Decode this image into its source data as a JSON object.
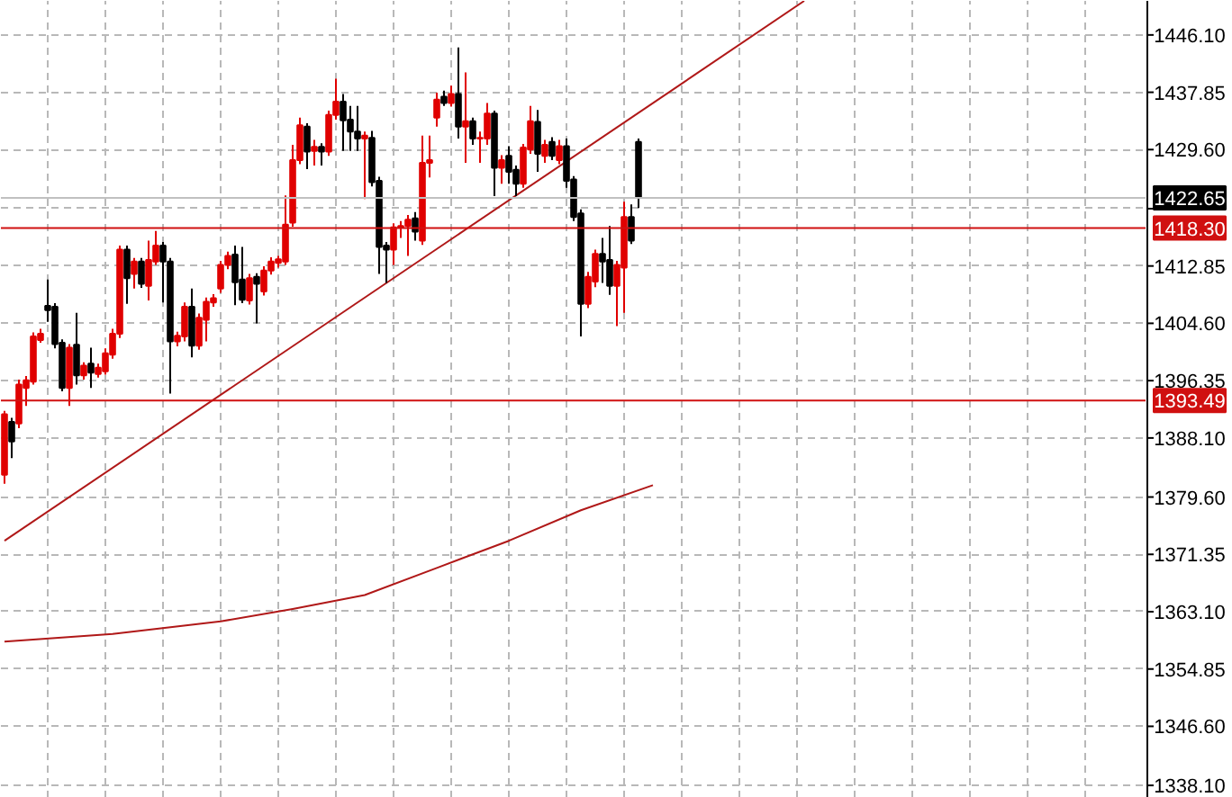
{
  "chart_data": {
    "type": "candlestick",
    "categories": [
      null,
      null,
      null,
      null,
      null,
      null,
      null,
      null,
      null,
      null,
      null,
      null,
      null,
      null,
      null,
      null,
      null,
      null,
      null,
      null,
      null,
      null,
      null,
      null,
      null,
      null,
      null,
      null,
      null,
      null,
      null,
      null,
      null,
      null,
      null,
      null,
      null,
      null,
      null,
      null,
      null,
      null,
      null,
      null,
      null,
      null,
      null,
      null,
      null,
      null,
      null,
      null,
      null,
      null,
      null,
      null,
      null,
      null,
      null,
      null,
      null,
      null,
      null,
      null,
      null,
      null,
      null,
      null,
      null,
      null,
      null,
      null,
      null,
      null,
      null,
      null,
      null,
      null,
      null,
      null,
      null,
      null,
      null,
      null,
      null,
      null,
      null,
      null,
      null,
      null,
      null,
      null,
      null,
      null,
      null,
      null,
      null,
      null,
      null,
      null,
      null,
      null,
      null,
      null,
      null,
      null,
      null,
      null,
      null,
      null,
      null,
      null,
      null,
      null,
      null,
      null,
      null,
      null,
      null,
      null,
      null,
      null,
      null,
      null,
      null,
      null,
      null,
      null,
      null,
      null,
      null,
      null,
      null,
      null,
      null,
      null,
      null,
      null,
      null,
      null,
      null,
      null,
      null,
      null,
      null,
      null,
      null,
      null,
      null,
      null,
      null,
      null,
      null,
      null,
      null,
      null,
      null,
      null,
      null
    ],
    "ohlc": [
      [
        1382.8,
        1392.0,
        1381.5,
        1391.5
      ],
      [
        1390.4,
        1391.0,
        1385.2,
        1387.6
      ],
      [
        1390.2,
        1396.5,
        1389.5,
        1395.8
      ],
      [
        1395.3,
        1397.0,
        1392.7,
        1396.4
      ],
      [
        1396.2,
        1403.3,
        1395.8,
        1402.7
      ],
      [
        1402.2,
        1403.8,
        1401.8,
        1403.1
      ],
      [
        1407.1,
        1410.9,
        1404.8,
        1406.5
      ],
      [
        1407.0,
        1407.5,
        1401.0,
        1401.6
      ],
      [
        1401.8,
        1402.3,
        1394.8,
        1395.3
      ],
      [
        1395.3,
        1401.6,
        1392.7,
        1401.1
      ],
      [
        1401.5,
        1406.1,
        1395.8,
        1397.1
      ],
      [
        1397.1,
        1399.0,
        1396.5,
        1398.5
      ],
      [
        1398.8,
        1401.1,
        1395.3,
        1397.5
      ],
      [
        1397.3,
        1398.8,
        1396.8,
        1398.2
      ],
      [
        1397.7,
        1401.0,
        1397.2,
        1400.3
      ],
      [
        1400.1,
        1403.8,
        1399.5,
        1403.1
      ],
      [
        1403.1,
        1415.8,
        1402.5,
        1415.2
      ],
      [
        1415.2,
        1415.8,
        1407.4,
        1411.1
      ],
      [
        1411.7,
        1414.0,
        1409.6,
        1413.5
      ],
      [
        1413.5,
        1414.0,
        1409.7,
        1410.3
      ],
      [
        1410.0,
        1416.5,
        1407.9,
        1413.7
      ],
      [
        1413.5,
        1417.9,
        1413.0,
        1415.8
      ],
      [
        1415.8,
        1416.3,
        1407.6,
        1413.5
      ],
      [
        1413.5,
        1414.0,
        1394.5,
        1402.0
      ],
      [
        1402.0,
        1403.4,
        1401.3,
        1402.8
      ],
      [
        1402.7,
        1407.6,
        1402.0,
        1407.0
      ],
      [
        1407.0,
        1409.6,
        1399.7,
        1401.4
      ],
      [
        1401.4,
        1406.0,
        1400.8,
        1405.4
      ],
      [
        1405.1,
        1408.3,
        1402.0,
        1407.7
      ],
      [
        1407.6,
        1408.8,
        1407.0,
        1408.2
      ],
      [
        1409.6,
        1413.6,
        1409.0,
        1413.0
      ],
      [
        1413.0,
        1414.9,
        1412.4,
        1414.3
      ],
      [
        1414.5,
        1415.8,
        1407.2,
        1410.5
      ],
      [
        1410.9,
        1415.6,
        1407.5,
        1408.0
      ],
      [
        1407.9,
        1411.7,
        1407.3,
        1411.1
      ],
      [
        1411.3,
        1411.8,
        1404.6,
        1410.3
      ],
      [
        1409.2,
        1412.8,
        1408.6,
        1412.2
      ],
      [
        1412.2,
        1414.1,
        1411.6,
        1413.5
      ],
      [
        1413.3,
        1414.3,
        1412.6,
        1413.8
      ],
      [
        1413.5,
        1423.0,
        1413.0,
        1418.8
      ],
      [
        1419.1,
        1430.3,
        1418.5,
        1428.1
      ],
      [
        1428.1,
        1434.2,
        1427.5,
        1433.1
      ],
      [
        1432.9,
        1433.4,
        1426.8,
        1429.3
      ],
      [
        1429.4,
        1431.0,
        1427.3,
        1430.0
      ],
      [
        1430.0,
        1430.5,
        1427.3,
        1429.3
      ],
      [
        1429.3,
        1435.2,
        1428.7,
        1434.6
      ],
      [
        1434.6,
        1439.8,
        1433.9,
        1436.5
      ],
      [
        1436.5,
        1437.6,
        1429.4,
        1433.8
      ],
      [
        1433.9,
        1435.9,
        1429.4,
        1432.2
      ],
      [
        1432.2,
        1435.9,
        1429.4,
        1431.2
      ],
      [
        1431.2,
        1432.2,
        1422.5,
        1431.6
      ],
      [
        1431.3,
        1432.3,
        1424.3,
        1424.9
      ],
      [
        1425.1,
        1425.7,
        1411.7,
        1415.6
      ],
      [
        1415.8,
        1416.3,
        1410.4,
        1415.2
      ],
      [
        1415.2,
        1419.0,
        1413.0,
        1418.4
      ],
      [
        1418.4,
        1419.3,
        1416.9,
        1418.6
      ],
      [
        1418.6,
        1420.2,
        1414.3,
        1419.5
      ],
      [
        1419.7,
        1420.6,
        1416.5,
        1417.8
      ],
      [
        1416.5,
        1431.6,
        1415.9,
        1427.7
      ],
      [
        1427.7,
        1431.6,
        1425.6,
        1428.1
      ],
      [
        1434.2,
        1437.8,
        1432.9,
        1436.8
      ],
      [
        1437.2,
        1438.1,
        1435.9,
        1436.3
      ],
      [
        1436.3,
        1438.8,
        1435.8,
        1437.6
      ],
      [
        1437.6,
        1444.3,
        1431.2,
        1432.9
      ],
      [
        1432.9,
        1440.7,
        1427.7,
        1433.7
      ],
      [
        1433.7,
        1434.2,
        1430.3,
        1431.2
      ],
      [
        1431.2,
        1432.2,
        1427.7,
        1431.3
      ],
      [
        1431.2,
        1436.3,
        1430.3,
        1434.8
      ],
      [
        1434.8,
        1435.2,
        1422.9,
        1427.0
      ],
      [
        1427.0,
        1428.8,
        1424.7,
        1428.1
      ],
      [
        1428.7,
        1430.1,
        1424.7,
        1426.4
      ],
      [
        1426.7,
        1427.3,
        1422.9,
        1424.7
      ],
      [
        1424.7,
        1430.4,
        1424.1,
        1429.9
      ],
      [
        1429.6,
        1435.9,
        1429.0,
        1433.7
      ],
      [
        1433.6,
        1435.3,
        1426.4,
        1429.0
      ],
      [
        1428.7,
        1431.0,
        1427.7,
        1430.3
      ],
      [
        1430.7,
        1431.4,
        1428.1,
        1428.7
      ],
      [
        1428.1,
        1431.0,
        1427.5,
        1430.1
      ],
      [
        1430.1,
        1431.2,
        1424.1,
        1425.1
      ],
      [
        1425.3,
        1425.8,
        1419.3,
        1419.9
      ],
      [
        1420.4,
        1421.0,
        1402.7,
        1407.4
      ],
      [
        1407.4,
        1412.0,
        1406.8,
        1411.3
      ],
      [
        1410.6,
        1415.2,
        1409.8,
        1414.6
      ],
      [
        1414.6,
        1416.9,
        1410.4,
        1413.5
      ],
      [
        1413.7,
        1418.6,
        1408.7,
        1410.0
      ],
      [
        1410.0,
        1413.6,
        1404.2,
        1413.0
      ],
      [
        1412.6,
        1422.1,
        1406.1,
        1419.9
      ],
      [
        1419.9,
        1421.7,
        1416.0,
        1416.5
      ],
      [
        1430.7,
        1431.2,
        1421.2,
        1422.65
      ],
      null,
      null,
      null,
      null,
      null,
      null,
      null,
      null,
      null,
      null,
      null,
      null,
      null,
      null,
      null,
      null,
      null,
      null,
      null,
      null,
      null,
      null,
      null,
      null,
      null,
      null,
      null,
      null,
      null,
      null,
      null,
      null,
      null,
      null,
      null,
      null,
      null,
      null,
      null,
      null,
      null,
      null,
      null,
      null,
      null,
      null,
      null,
      null,
      null,
      null,
      null,
      null,
      null,
      null,
      null,
      null,
      null,
      null,
      null,
      null,
      null,
      null,
      null,
      null,
      null,
      null,
      null,
      null,
      null,
      null
    ],
    "colors": [
      "#e00000",
      "#000000",
      "#e00000",
      "#e00000",
      "#e00000",
      "#e00000",
      "#000000",
      "#000000",
      "#000000",
      "#e00000",
      "#000000",
      "#e00000",
      "#000000",
      "#e00000",
      "#e00000",
      "#e00000",
      "#e00000",
      "#000000",
      "#e00000",
      "#000000",
      "#e00000",
      "#e00000",
      "#000000",
      "#000000",
      "#e00000",
      "#e00000",
      "#000000",
      "#e00000",
      "#e00000",
      "#e00000",
      "#e00000",
      "#e00000",
      "#000000",
      "#000000",
      "#e00000",
      "#000000",
      "#e00000",
      "#e00000",
      "#e00000",
      "#e00000",
      "#e00000",
      "#e00000",
      "#000000",
      "#e00000",
      "#000000",
      "#e00000",
      "#e00000",
      "#000000",
      "#000000",
      "#000000",
      "#e00000",
      "#000000",
      "#000000",
      "#000000",
      "#e00000",
      "#e00000",
      "#e00000",
      "#000000",
      "#e00000",
      "#e00000",
      "#e00000",
      "#000000",
      "#e00000",
      "#000000",
      "#e00000",
      "#000000",
      "#e00000",
      "#e00000",
      "#000000",
      "#e00000",
      "#000000",
      "#000000",
      "#e00000",
      "#e00000",
      "#000000",
      "#e00000",
      "#000000",
      "#e00000",
      "#000000",
      "#000000",
      "#000000",
      "#e00000",
      "#e00000",
      "#000000",
      "#000000",
      "#e00000",
      "#e00000",
      "#000000",
      "#000000",
      null,
      null,
      null,
      null,
      null,
      null,
      null,
      null,
      null,
      null,
      null,
      null,
      null,
      null,
      null,
      null,
      null,
      null,
      null,
      null,
      null,
      null,
      null,
      null,
      null,
      null,
      null,
      null,
      null,
      null,
      null,
      null,
      null,
      null,
      null,
      null,
      null,
      null,
      null,
      null,
      null,
      null,
      null,
      null,
      null,
      null,
      null,
      null,
      null,
      null,
      null,
      null,
      null,
      null,
      null,
      null,
      null,
      null,
      null,
      null,
      null,
      null,
      null,
      null,
      null,
      null,
      null,
      null,
      null,
      null
    ],
    "series": [
      {
        "type": "line",
        "color": "#b01818",
        "values": [
          1373.3,
          null,
          null,
          null,
          null,
          null,
          null,
          null,
          null,
          null,
          null,
          null,
          null,
          null,
          null,
          null,
          null,
          null,
          null,
          null,
          null,
          null,
          null,
          null,
          null,
          null,
          null,
          null,
          null,
          null,
          null,
          null,
          null,
          null,
          null,
          null,
          null,
          null,
          null,
          null,
          null,
          null,
          null,
          null,
          null,
          null,
          null,
          null,
          null,
          null,
          null,
          null,
          null,
          null,
          null,
          null,
          null,
          null,
          null,
          null,
          null,
          null,
          null,
          null,
          null,
          null,
          null,
          null,
          null,
          null,
          null,
          null,
          null,
          null,
          null,
          null,
          null,
          null,
          null,
          null,
          null,
          null,
          null,
          null,
          null,
          null,
          null,
          null,
          null,
          null,
          null,
          null,
          null,
          null,
          null,
          null,
          null,
          null,
          null,
          null,
          null,
          null,
          null,
          null,
          null,
          null,
          null,
          null,
          null,
          null,
          null,
          1451.0,
          null,
          null,
          null,
          null,
          null,
          null,
          null,
          null,
          null,
          null,
          null,
          null,
          null,
          null,
          null,
          null,
          null,
          null,
          null,
          null,
          null,
          null,
          null,
          null,
          null,
          null,
          null,
          null,
          null,
          null,
          null,
          null,
          null,
          null,
          null,
          null,
          null,
          null,
          null,
          null,
          null,
          null,
          null,
          null,
          null,
          null,
          null
        ]
      },
      {
        "type": "line",
        "color": "#b01818",
        "values": [
          1358.8,
          null,
          null,
          null,
          null,
          null,
          null,
          null,
          null,
          null,
          null,
          null,
          null,
          null,
          null,
          1359.9,
          null,
          null,
          null,
          null,
          null,
          null,
          null,
          null,
          null,
          null,
          null,
          null,
          null,
          null,
          1361.7,
          null,
          null,
          null,
          null,
          null,
          null,
          null,
          null,
          null,
          1363.5,
          null,
          null,
          null,
          null,
          null,
          null,
          null,
          null,
          null,
          1365.5,
          null,
          null,
          null,
          null,
          null,
          null,
          null,
          null,
          null,
          1369.4,
          null,
          null,
          null,
          null,
          null,
          null,
          null,
          null,
          null,
          1373.3,
          null,
          null,
          null,
          null,
          null,
          null,
          null,
          null,
          null,
          1377.7,
          null,
          null,
          null,
          null,
          null,
          null,
          null,
          null,
          null,
          1381.3,
          null,
          null,
          null,
          null,
          null,
          null,
          null,
          null,
          null,
          null,
          null,
          null,
          null,
          null,
          null,
          null,
          null,
          null,
          null,
          null,
          null,
          null,
          null,
          null,
          null,
          null,
          null,
          null,
          null,
          null,
          null,
          null,
          null,
          null,
          null,
          null,
          null,
          null,
          null,
          null,
          null,
          null,
          null,
          null,
          null,
          null,
          null,
          null,
          null,
          null,
          null,
          null,
          null,
          null,
          null,
          null,
          null,
          null,
          null,
          null,
          null,
          null,
          null,
          null,
          null,
          null,
          null,
          null
        ]
      }
    ],
    "ref_lines": [
      {
        "axis": "y",
        "value": 1422.65,
        "label": "1422.65",
        "color": "#c0c0c0"
      },
      {
        "axis": "y",
        "value": 1418.3,
        "label": "1418.30",
        "color": "#d01010"
      },
      {
        "axis": "y",
        "value": 1393.49,
        "label": "1393.49",
        "color": "#d01010"
      }
    ],
    "ylim": [
      1336.3,
      1451.0
    ],
    "yticks": [
      {
        "value": 1338.1,
        "label": "1338.10"
      },
      {
        "value": 1346.6,
        "label": "1346.60"
      },
      {
        "value": 1354.85,
        "label": "1354.85"
      },
      {
        "value": 1363.1,
        "label": "1363.10"
      },
      {
        "value": 1371.35,
        "label": "1371.35"
      },
      {
        "value": 1379.6,
        "label": "1379.60"
      },
      {
        "value": 1388.1,
        "label": "1388.10"
      },
      {
        "value": 1396.35,
        "label": "1396.35"
      },
      {
        "value": 1404.6,
        "label": "1404.60"
      },
      {
        "value": 1412.85,
        "label": "1412.85"
      },
      {
        "value": 1421.1,
        "label": null
      },
      {
        "value": 1429.6,
        "label": "1429.60"
      },
      {
        "value": 1437.85,
        "label": "1437.85"
      },
      {
        "value": 1446.1,
        "label": "1446.10"
      }
    ],
    "grid": true,
    "tick_labels": "y",
    "line_style": "solid"
  }
}
